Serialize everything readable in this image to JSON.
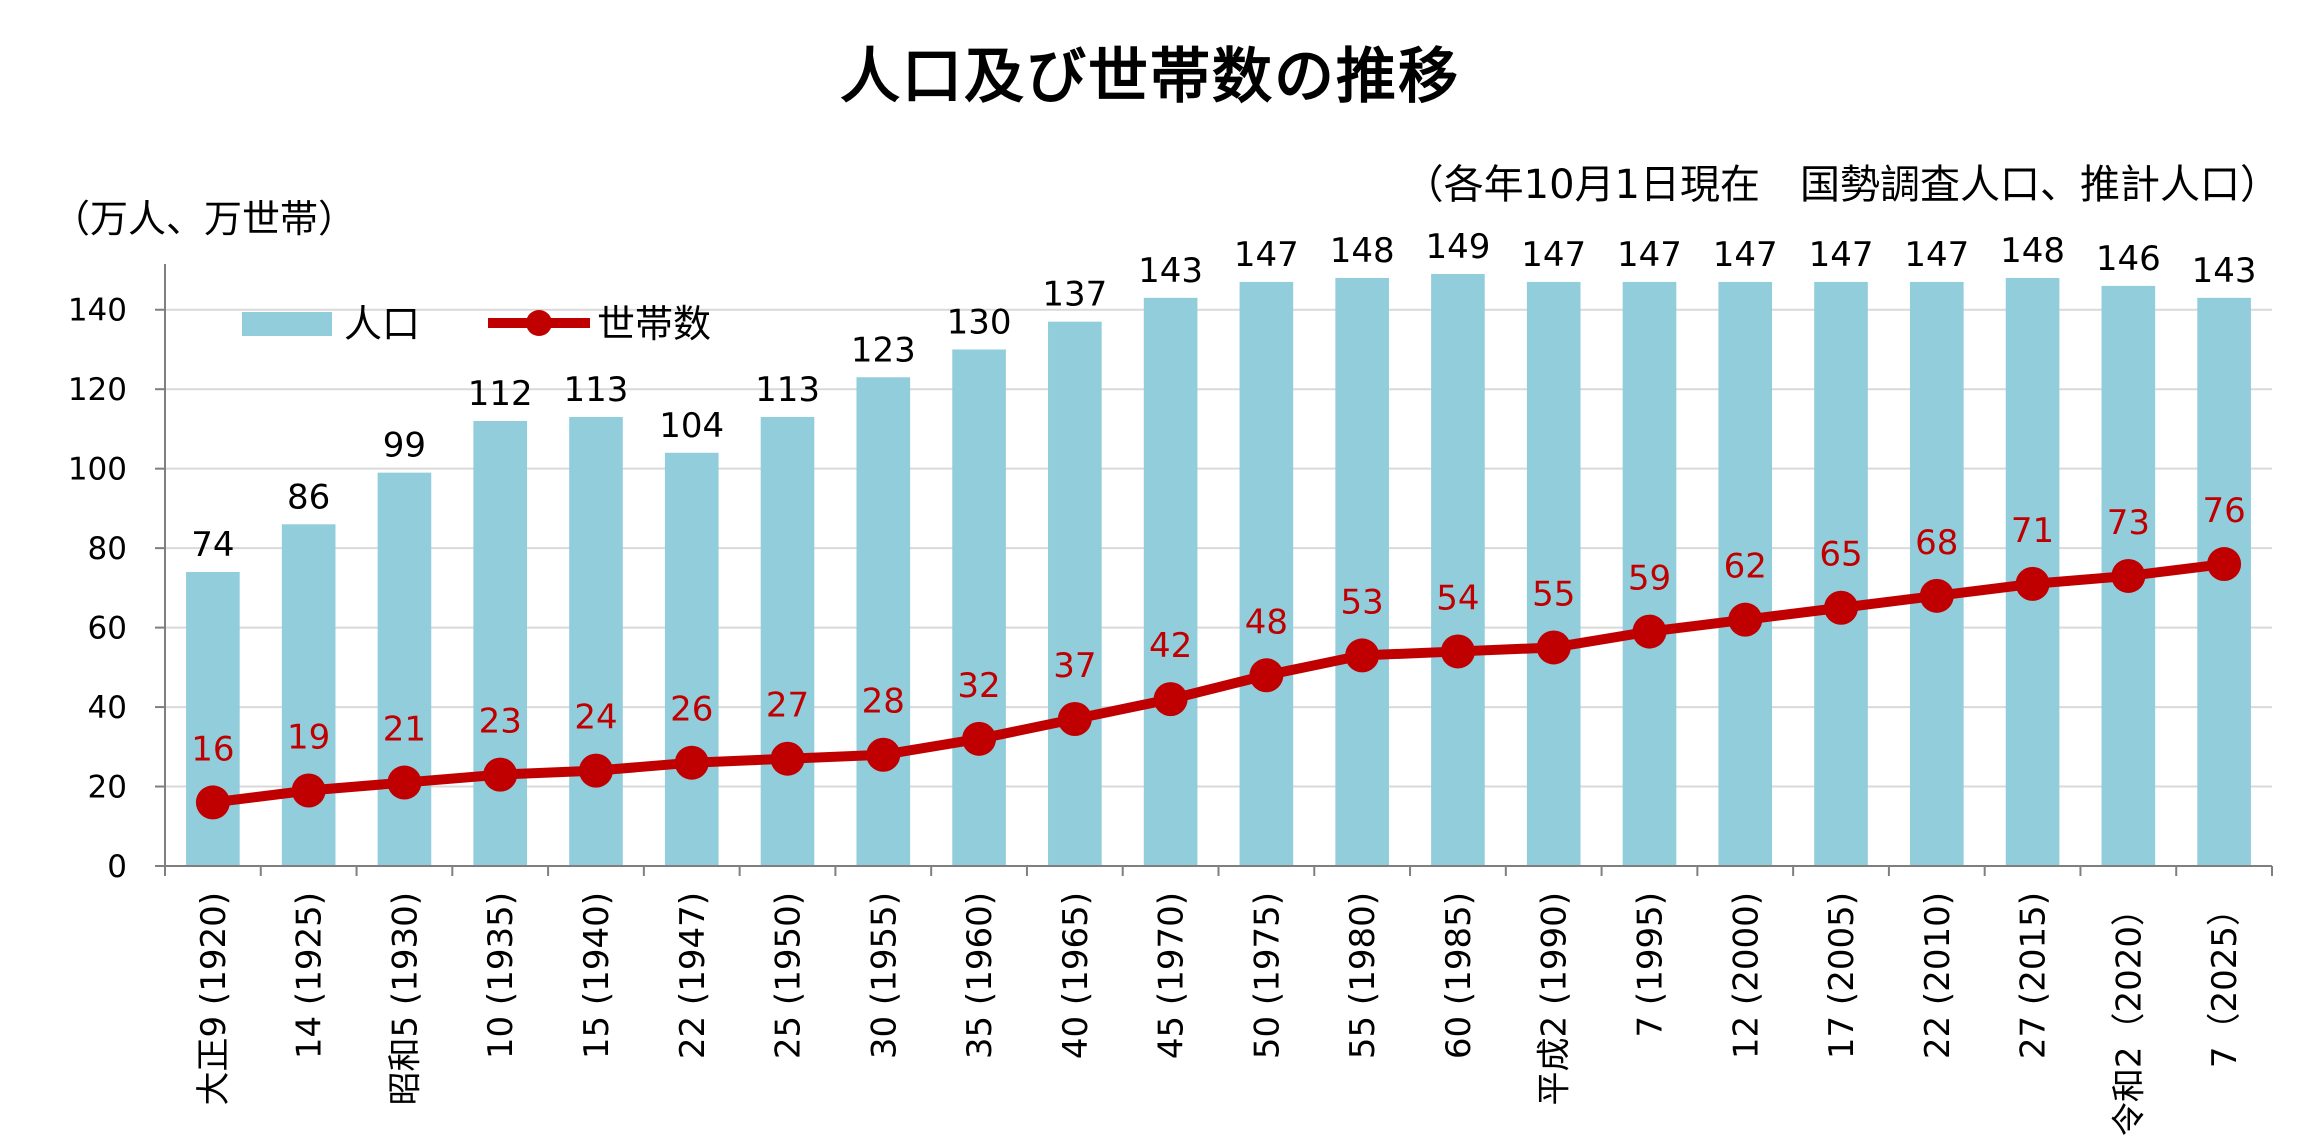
{
  "chart_data": {
    "type": "bar",
    "title": "人口及び世帯数の推移",
    "subtitle": "（各年10月1日現在　国勢調査人口、推計人口）",
    "ylabel": "（万人、万世帯）",
    "ylim": [
      0,
      150
    ],
    "yticks": [
      0,
      20,
      40,
      60,
      80,
      100,
      120,
      140
    ],
    "grid": true,
    "legend_position": "top-left",
    "categories": [
      "大正9 (1920)",
      "14 (1925)",
      "昭和5 (1930)",
      "10 (1935)",
      "15 (1940)",
      "22 (1947)",
      "25 (1950)",
      "30 (1955)",
      "35 (1960)",
      "40 (1965)",
      "45 (1970)",
      "50 (1975)",
      "55 (1980)",
      "60 (1985)",
      "平成2 (1990)",
      "7 (1995)",
      "12 (2000)",
      "17 (2005)",
      "22 (2010)",
      "27 (2015)",
      "令和2（2020）",
      "7（2025）"
    ],
    "series": [
      {
        "name": "人口",
        "type": "bar",
        "color": "#92cddc",
        "values": [
          74,
          86,
          99,
          112,
          113,
          104,
          113,
          123,
          130,
          137,
          143,
          147,
          148,
          149,
          147,
          147,
          147,
          147,
          147,
          148,
          146,
          143
        ]
      },
      {
        "name": "世帯数",
        "type": "line",
        "color": "#c00000",
        "values": [
          16,
          19,
          21,
          23,
          24,
          26,
          27,
          28,
          32,
          37,
          42,
          48,
          53,
          54,
          55,
          59,
          62,
          65,
          68,
          71,
          73,
          76
        ]
      }
    ]
  }
}
